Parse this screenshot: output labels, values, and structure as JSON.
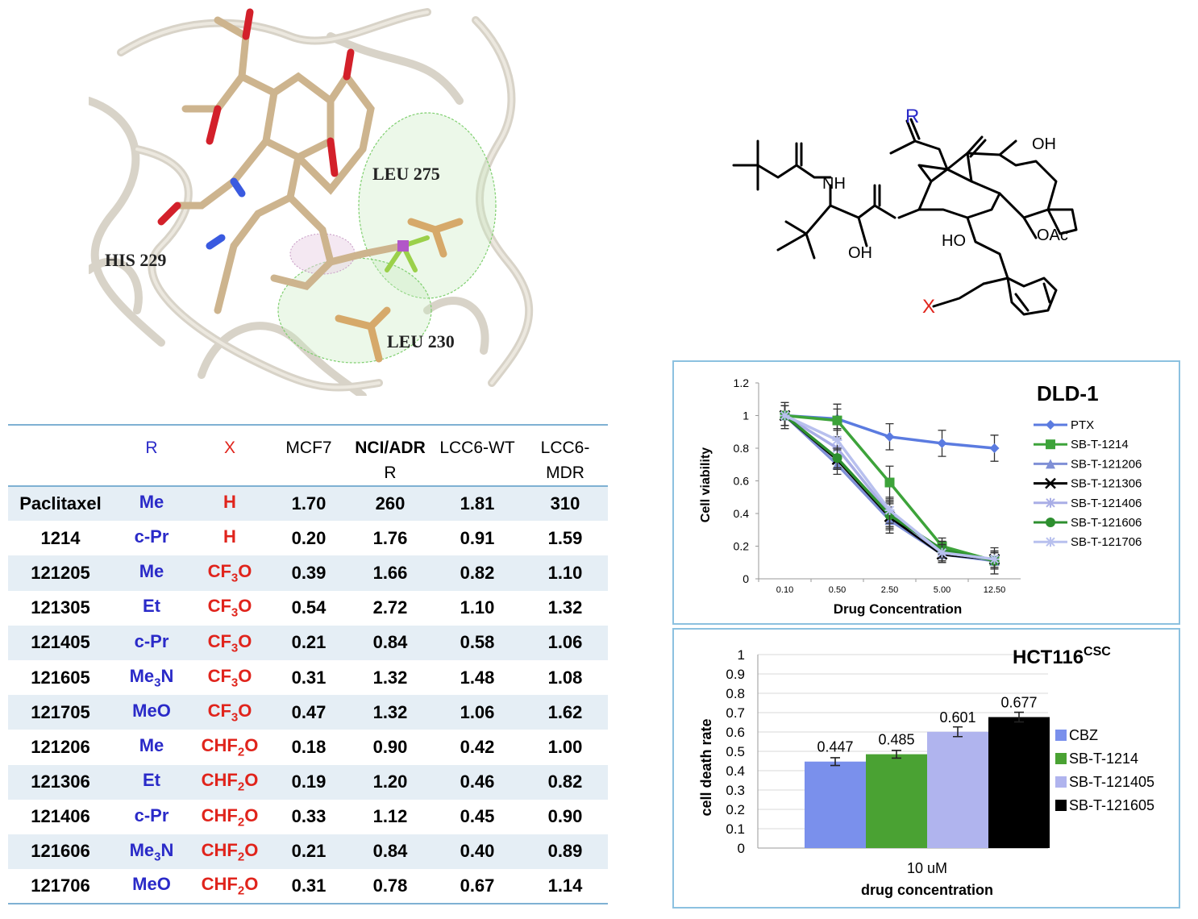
{
  "docking_labels": [
    "LEU 275",
    "HIS 229",
    "LEU 230"
  ],
  "structure_labels": {
    "r": "R",
    "x": "X",
    "nh": "NH",
    "oh_chain": "OH",
    "oh_top": "OH",
    "ho_bottom": "HO",
    "oac": "OAc"
  },
  "table": {
    "headers": {
      "compound": "",
      "r": "R",
      "x": "X",
      "mcf7": "MCF7",
      "nci_line1": "NCI/ADR",
      "nci_line2": "R",
      "lcc6wt": "LCC6-WT",
      "lcc6mdr_line1": "LCC6-",
      "lcc6mdr_line2": "MDR"
    },
    "rows": [
      {
        "compound": "Paclitaxel",
        "r": "Me",
        "r_sub": "",
        "r_after": "",
        "x": "H",
        "x_sub": "",
        "x_after": "",
        "mcf7": "1.70",
        "nci": "260",
        "lcc6wt": "1.81",
        "lcc6mdr": "310"
      },
      {
        "compound": "1214",
        "r": "c-Pr",
        "r_sub": "",
        "r_after": "",
        "x": "H",
        "x_sub": "",
        "x_after": "",
        "mcf7": "0.20",
        "nci": "1.76",
        "lcc6wt": "0.91",
        "lcc6mdr": "1.59"
      },
      {
        "compound": "121205",
        "r": "Me",
        "r_sub": "",
        "r_after": "",
        "x": "CF",
        "x_sub": "3",
        "x_after": "O",
        "mcf7": "0.39",
        "nci": "1.66",
        "lcc6wt": "0.82",
        "lcc6mdr": "1.10"
      },
      {
        "compound": "121305",
        "r": "Et",
        "r_sub": "",
        "r_after": "",
        "x": "CF",
        "x_sub": "3",
        "x_after": "O",
        "mcf7": "0.54",
        "nci": "2.72",
        "lcc6wt": "1.10",
        "lcc6mdr": "1.32"
      },
      {
        "compound": "121405",
        "r": "c-Pr",
        "r_sub": "",
        "r_after": "",
        "x": "CF",
        "x_sub": "3",
        "x_after": "O",
        "mcf7": "0.21",
        "nci": "0.84",
        "lcc6wt": "0.58",
        "lcc6mdr": "1.06"
      },
      {
        "compound": "121605",
        "r": "Me",
        "r_sub": "3",
        "r_after": "N",
        "x": "CF",
        "x_sub": "3",
        "x_after": "O",
        "mcf7": "0.31",
        "nci": "1.32",
        "lcc6wt": "1.48",
        "lcc6mdr": "1.08"
      },
      {
        "compound": "121705",
        "r": "MeO",
        "r_sub": "",
        "r_after": "",
        "x": "CF",
        "x_sub": "3",
        "x_after": "O",
        "mcf7": "0.47",
        "nci": "1.32",
        "lcc6wt": "1.06",
        "lcc6mdr": "1.62"
      },
      {
        "compound": "121206",
        "r": "Me",
        "r_sub": "",
        "r_after": "",
        "x": "CHF",
        "x_sub": "2",
        "x_after": "O",
        "mcf7": "0.18",
        "nci": "0.90",
        "lcc6wt": "0.42",
        "lcc6mdr": "1.00"
      },
      {
        "compound": "121306",
        "r": "Et",
        "r_sub": "",
        "r_after": "",
        "x": "CHF",
        "x_sub": "2",
        "x_after": "O",
        "mcf7": "0.19",
        "nci": "1.20",
        "lcc6wt": "0.46",
        "lcc6mdr": "0.82"
      },
      {
        "compound": "121406",
        "r": "c-Pr",
        "r_sub": "",
        "r_after": "",
        "x": "CHF",
        "x_sub": "2",
        "x_after": "O",
        "mcf7": "0.33",
        "nci": "1.12",
        "lcc6wt": "0.45",
        "lcc6mdr": "0.90"
      },
      {
        "compound": "121606",
        "r": "Me",
        "r_sub": "3",
        "r_after": "N",
        "x": "CHF",
        "x_sub": "2",
        "x_after": "O",
        "mcf7": "0.21",
        "nci": "0.84",
        "lcc6wt": "0.40",
        "lcc6mdr": "0.89"
      },
      {
        "compound": "121706",
        "r": "MeO",
        "r_sub": "",
        "r_after": "",
        "x": "CHF",
        "x_sub": "2",
        "x_after": "O",
        "mcf7": "0.31",
        "nci": "0.78",
        "lcc6wt": "0.67",
        "lcc6mdr": "1.14"
      }
    ]
  },
  "chart_data": [
    {
      "type": "line",
      "title": "DLD-1",
      "xlabel": "Drug Concentration",
      "ylabel": "Cell viability",
      "categories": [
        "0.10",
        "0.50",
        "2.50",
        "5.00",
        "12.50"
      ],
      "ylim": [
        0,
        1.2
      ],
      "yticks": [
        "0",
        "0.2",
        "0.4",
        "0.6",
        "0.8",
        "1",
        "1.2"
      ],
      "legend_position": "right",
      "series": [
        {
          "name": "PTX",
          "color": "#5b7be0",
          "marker": "diamond",
          "values": [
            1.0,
            0.98,
            0.87,
            0.83,
            0.8
          ],
          "errors": [
            0.06,
            0.06,
            0.08,
            0.08,
            0.08
          ]
        },
        {
          "name": "SB-T-1214",
          "color": "#3da33a",
          "marker": "square",
          "values": [
            1.0,
            0.97,
            0.59,
            0.2,
            0.11
          ],
          "errors": [
            0.08,
            0.1,
            0.1,
            0.05,
            0.08
          ]
        },
        {
          "name": "SB-T-121206",
          "color": "#7f8fd6",
          "marker": "triangle",
          "values": [
            1.0,
            0.7,
            0.36,
            0.15,
            0.11
          ],
          "errors": [
            0.06,
            0.06,
            0.08,
            0.05,
            0.05
          ]
        },
        {
          "name": "SB-T-121306",
          "color": "#000000",
          "marker": "x",
          "values": [
            1.0,
            0.73,
            0.38,
            0.15,
            0.12
          ],
          "errors": [
            0.06,
            0.06,
            0.08,
            0.05,
            0.05
          ]
        },
        {
          "name": "SB-T-121406",
          "color": "#a9aee6",
          "marker": "star",
          "values": [
            1.0,
            0.8,
            0.4,
            0.16,
            0.12
          ],
          "errors": [
            0.06,
            0.06,
            0.08,
            0.05,
            0.05
          ]
        },
        {
          "name": "SB-T-121606",
          "color": "#2d8f2f",
          "marker": "circle",
          "values": [
            1.0,
            0.74,
            0.39,
            0.18,
            0.11
          ],
          "errors": [
            0.06,
            0.06,
            0.08,
            0.05,
            0.05
          ]
        },
        {
          "name": "SB-T-121706",
          "color": "#b8c0ee",
          "marker": "star",
          "values": [
            1.0,
            0.85,
            0.42,
            0.16,
            0.12
          ],
          "errors": [
            0.06,
            0.06,
            0.08,
            0.05,
            0.05
          ]
        }
      ]
    },
    {
      "type": "bar",
      "title": "HCT116",
      "title_sup": "CSC",
      "xlabel": "drug concentration",
      "ylabel": "cell death rate",
      "categories": [
        "10 uM"
      ],
      "ylim": [
        0,
        1
      ],
      "yticks": [
        "0",
        "0.1",
        "0.2",
        "0.3",
        "0.4",
        "0.5",
        "0.6",
        "0.7",
        "0.8",
        "0.9",
        "1"
      ],
      "grid": true,
      "legend_position": "right",
      "series": [
        {
          "name": "CBZ",
          "color": "#7a90ec",
          "value": 0.447,
          "label": "0.447",
          "error": 0.02
        },
        {
          "name": "SB-T-1214",
          "color": "#4aa233",
          "value": 0.485,
          "label": "0.485",
          "error": 0.02
        },
        {
          "name": "SB-T-121405",
          "color": "#b0b4ee",
          "value": 0.601,
          "label": "0.601",
          "error": 0.025
        },
        {
          "name": "SB-T-121605",
          "color": "#000000",
          "value": 0.677,
          "label": "0.677",
          "error": 0.025
        }
      ]
    }
  ]
}
